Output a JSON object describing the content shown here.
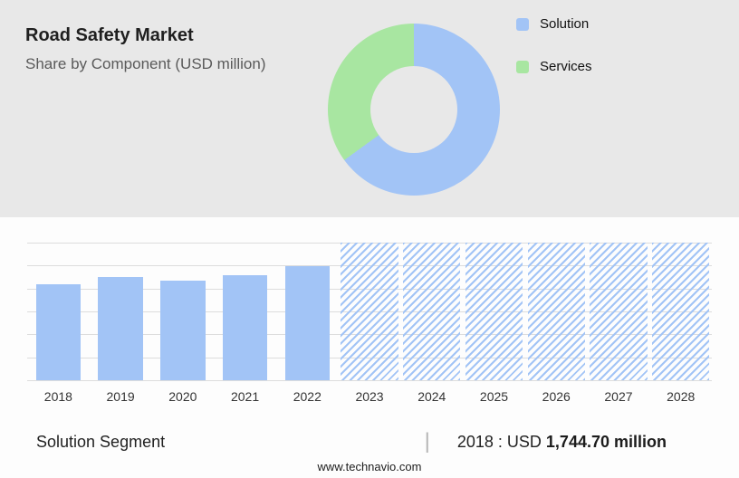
{
  "header": {
    "title": "Road Safety Market",
    "subtitle": "Share by Component (USD million)"
  },
  "legend": {
    "items": [
      {
        "label": "Solution",
        "color": "#a2c4f6"
      },
      {
        "label": "Services",
        "color": "#a8e6a1"
      }
    ]
  },
  "footer": {
    "segment_label": "Solution Segment",
    "separator": "|",
    "stat_prefix": "2018 : USD",
    "stat_value": "1,744.70 million",
    "website": "www.technavio.com"
  },
  "colors": {
    "solution_blue": "#a2c4f6",
    "services_green": "#a8e6a1",
    "panel_gray": "#e8e8e8",
    "gridline": "#dddddd"
  },
  "chart_data": [
    {
      "type": "pie",
      "donut": true,
      "title": "Share by Component (USD million)",
      "labels": [
        "Solution",
        "Services"
      ],
      "values": [
        65,
        35
      ],
      "unit": "percent share (estimated from arc angles)",
      "legend_position": "right"
    },
    {
      "type": "bar",
      "title": "Road Safety Market by year (USD million)",
      "categories": [
        "2018",
        "2019",
        "2020",
        "2021",
        "2022",
        "2023",
        "2024",
        "2025",
        "2026",
        "2027",
        "2028"
      ],
      "values": [
        1744.7,
        1880,
        1815,
        1915,
        2080,
        null,
        null,
        null,
        null,
        null,
        null
      ],
      "forecast_categories": [
        "2023",
        "2024",
        "2025",
        "2026",
        "2027",
        "2028"
      ],
      "annotation": "2018 : USD 1,744.70 million",
      "xlabel": "",
      "ylabel": "",
      "ylim": [
        0,
        2500
      ],
      "gridline_count": 7,
      "grid": true,
      "legend_position": "none"
    }
  ]
}
